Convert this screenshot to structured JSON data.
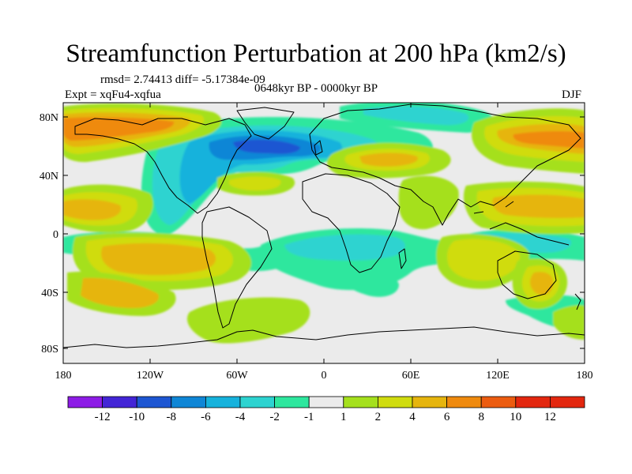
{
  "title": "Streamfunction Perturbation at 200 hPa (km2/s)",
  "stats": "rmsd= 2.74413 diff= -5.17384e-09",
  "experiment": "Expt = xqFu4-xqfua",
  "period": "0648kyr BP - 0000kyr BP",
  "season": "DJF",
  "lat_labels": [
    "80N",
    "40N",
    "0",
    "40S",
    "80S"
  ],
  "lon_labels": [
    "180",
    "120W",
    "60W",
    "0",
    "60E",
    "120E",
    "180"
  ],
  "colorbar": {
    "labels": [
      "-12",
      "-10",
      "-8",
      "-6",
      "-4",
      "-2",
      "-1",
      "1",
      "2",
      "4",
      "6",
      "8",
      "10",
      "12"
    ],
    "colors": [
      "#8d1ce6",
      "#4325d6",
      "#1d56d2",
      "#0f86d6",
      "#16b2dc",
      "#2dd3d0",
      "#2ee79e",
      "#ebebeb",
      "#a5e01d",
      "#d0dc0f",
      "#e6b50e",
      "#ef8a0e",
      "#ec5c10",
      "#e3270f"
    ]
  },
  "colors": {
    "land_outline": "#000000",
    "background": "#ebebeb"
  }
}
